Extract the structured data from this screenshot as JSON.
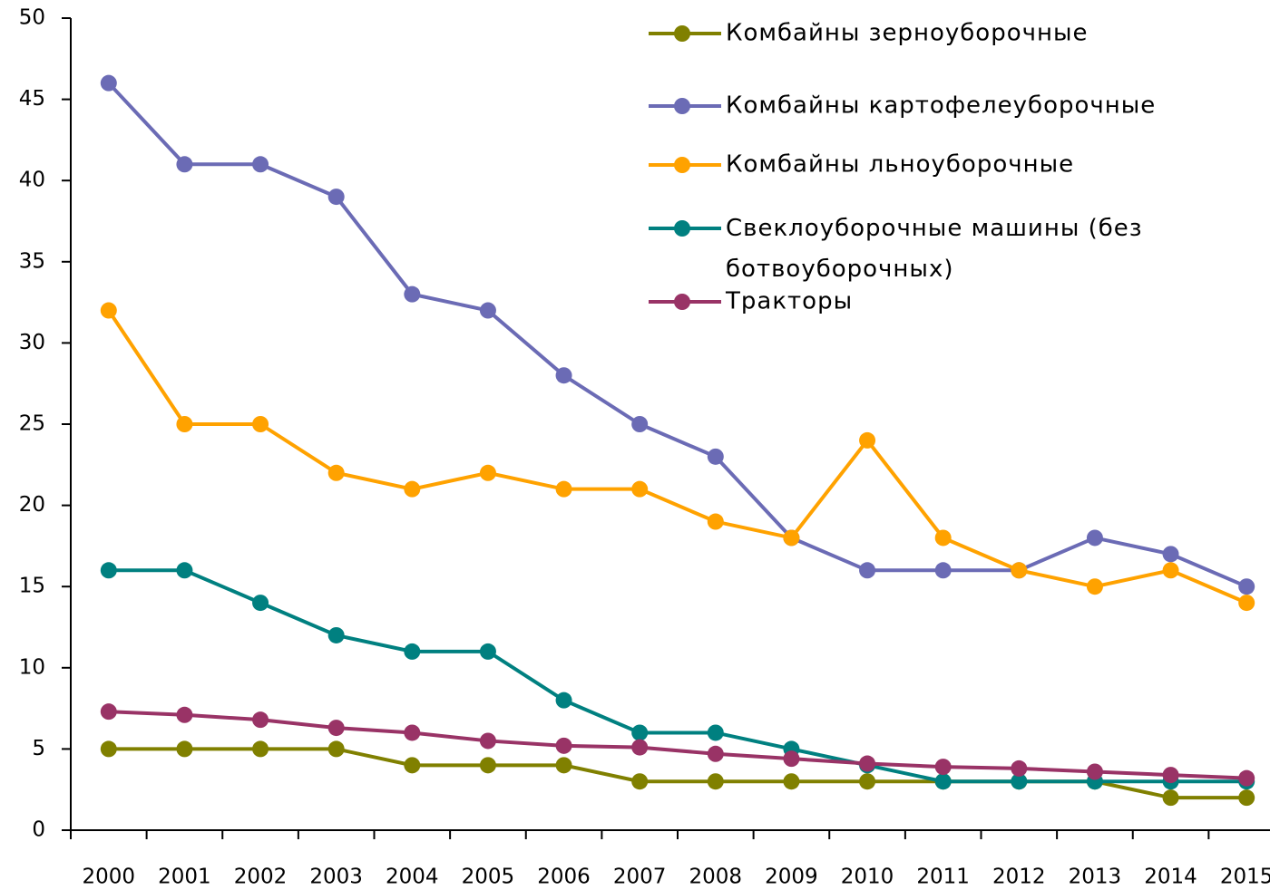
{
  "chart_data": {
    "type": "line",
    "categories": [
      "2000",
      "2001",
      "2002",
      "2003",
      "2004",
      "2005",
      "2006",
      "2007",
      "2008",
      "2009",
      "2010",
      "2011",
      "2012",
      "2013",
      "2014",
      "2015"
    ],
    "series": [
      {
        "name": "Комбайны зерноуборочные",
        "color": "#808000",
        "values": [
          5,
          5,
          5,
          5,
          4,
          4,
          4,
          3,
          3,
          3,
          3,
          3,
          3,
          3,
          2,
          2
        ]
      },
      {
        "name": "Комбайны картофелеуборочные",
        "color": "#6b6bb5",
        "values": [
          46,
          41,
          41,
          39,
          33,
          32,
          28,
          25,
          23,
          18,
          16,
          16,
          16,
          18,
          17,
          15
        ]
      },
      {
        "name": "Комбайны льноуборочные",
        "color": "#ffa200",
        "values": [
          32,
          25,
          25,
          22,
          21,
          22,
          21,
          21,
          19,
          18,
          24,
          18,
          16,
          15,
          16,
          14
        ]
      },
      {
        "name": "Свеклоуборочные машины (без ботвоуборочных)",
        "color": "#008080",
        "values": [
          16,
          16,
          14,
          12,
          11,
          11,
          8,
          6,
          6,
          5,
          4,
          3,
          3,
          3,
          3,
          3
        ]
      },
      {
        "name": "Тракторы",
        "color": "#993366",
        "values": [
          7.3,
          7.1,
          6.8,
          6.3,
          6.0,
          5.5,
          5.2,
          5.1,
          4.7,
          4.4,
          4.1,
          3.9,
          3.8,
          3.6,
          3.4,
          3.2
        ]
      }
    ],
    "ylim": [
      0,
      50
    ],
    "yticks": [
      0,
      5,
      10,
      15,
      20,
      25,
      30,
      35,
      40,
      45,
      50
    ],
    "grid": false
  }
}
